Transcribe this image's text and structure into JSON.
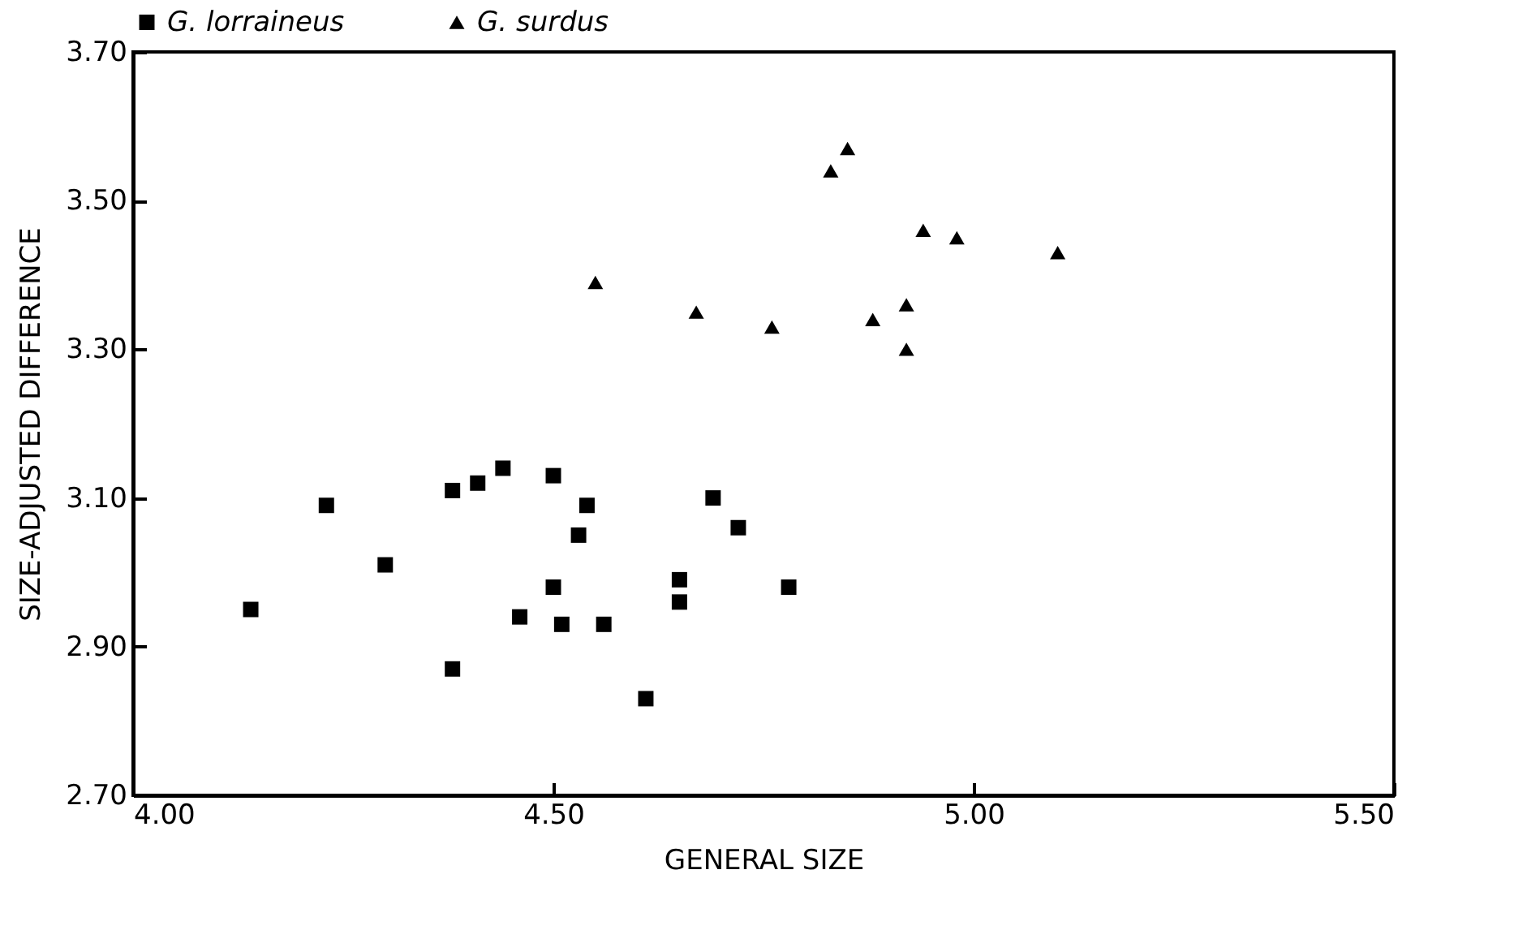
{
  "chart_data": {
    "type": "scatter",
    "xlabel": "GENERAL SIZE",
    "ylabel": "SIZE-ADJUSTED DIFFERENCE",
    "xlim": [
      4.0,
      5.5
    ],
    "ylim": [
      2.7,
      3.7
    ],
    "xticks": [
      {
        "value": 4.0,
        "label": "4.00"
      },
      {
        "value": 4.5,
        "label": "4.50"
      },
      {
        "value": 5.0,
        "label": "5.00"
      },
      {
        "value": 5.5,
        "label": "5.50"
      }
    ],
    "yticks": [
      {
        "value": 2.7,
        "label": "2.70"
      },
      {
        "value": 2.9,
        "label": "2.90"
      },
      {
        "value": 3.1,
        "label": "3.10"
      },
      {
        "value": 3.3,
        "label": "3.30"
      },
      {
        "value": 3.5,
        "label": "3.50"
      },
      {
        "value": 3.7,
        "label": "3.70"
      }
    ],
    "legend": "top left",
    "grid": false,
    "series": [
      {
        "name": "G. lorraineus",
        "color": "#000000",
        "marker": "square",
        "x": [
          4.14,
          4.23,
          4.3,
          4.38,
          4.41,
          4.44,
          4.38,
          4.46,
          4.5,
          4.5,
          4.51,
          4.54,
          4.53,
          4.56,
          4.61,
          4.65,
          4.65,
          4.69,
          4.72,
          4.78
        ],
        "values": [
          2.95,
          3.09,
          3.01,
          3.11,
          3.12,
          3.14,
          2.87,
          2.94,
          3.13,
          2.98,
          2.93,
          3.09,
          3.05,
          2.93,
          2.83,
          2.99,
          2.96,
          3.1,
          3.06,
          2.98
        ]
      },
      {
        "name": "G. surdus",
        "color": "#000000",
        "marker": "triangle",
        "x": [
          4.55,
          4.67,
          4.76,
          4.85,
          4.83,
          4.88,
          4.92,
          4.92,
          4.94,
          4.98,
          5.1
        ],
        "values": [
          3.39,
          3.35,
          3.33,
          3.57,
          3.54,
          3.34,
          3.36,
          3.3,
          3.46,
          3.45,
          3.43
        ]
      }
    ]
  }
}
